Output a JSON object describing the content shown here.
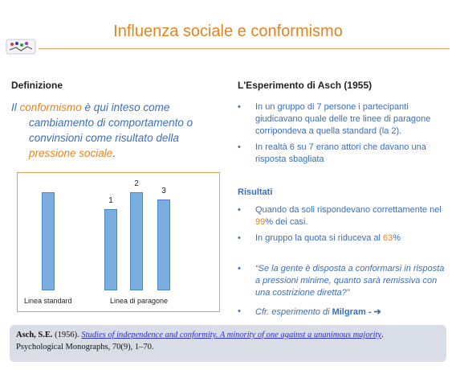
{
  "slide": {
    "title": "Influenza sociale e conformismo"
  },
  "definition": {
    "heading": "Definizione",
    "text_1": "Il ",
    "highlight_1": "conformismo",
    "text_2": " è qui inteso come",
    "line_2": "cambiamento di comportamento o",
    "line_3": "convinsioni come risultato della",
    "highlight_2": "pressione sociale",
    "text_end": "."
  },
  "chart_data": {
    "type": "bar",
    "categories": [
      "standard",
      "1",
      "2",
      "3"
    ],
    "values": [
      1.0,
      0.83,
      1.0,
      0.93
    ],
    "bar_labels": [
      "",
      "1",
      "2",
      "3"
    ],
    "xlabel_left": "Linea standard",
    "xlabel_right": "Linea di paragone",
    "bar_color": "#7aaee0"
  },
  "experiment": {
    "heading": "L'Esperimento di Asch (1955)",
    "bullets": [
      "In un gruppo di 7 persone i partecipanti giudicavano quale delle tre linee di paragone corripondeva a quella standard (la 2).",
      "In realtà 6 su 7 erano attori che davano una risposta sbagliata"
    ]
  },
  "results": {
    "heading": "Risultati",
    "b1_text": "Quando da soli rispondevano correttamente nel ",
    "b1_pct": "99",
    "b1_end": "% dei casi.",
    "b2_text": "In gruppo la quota si riduceva al ",
    "b2_pct": "63",
    "b2_end": "%",
    "quote": "“Se la gente è disposta a conformarsi in risposta a pressioni minime, quanto sarà remissiva con una costrizione diretta?”",
    "cfr_text": "Cfr. esperimento di ",
    "cfr_name": "Milgram",
    "cfr_arrow": " - ➔"
  },
  "reference": {
    "author": "Asch, S.E.",
    "year": " (1956). ",
    "link": "Studies of independence and conformity. A minority of one against a unanimous majority",
    "after_link": ".",
    "journal": "Psychological Monographs, 70(9), 1–70."
  },
  "colors": {
    "accent": "#e2841f",
    "text_blue": "#3a6fb7"
  }
}
